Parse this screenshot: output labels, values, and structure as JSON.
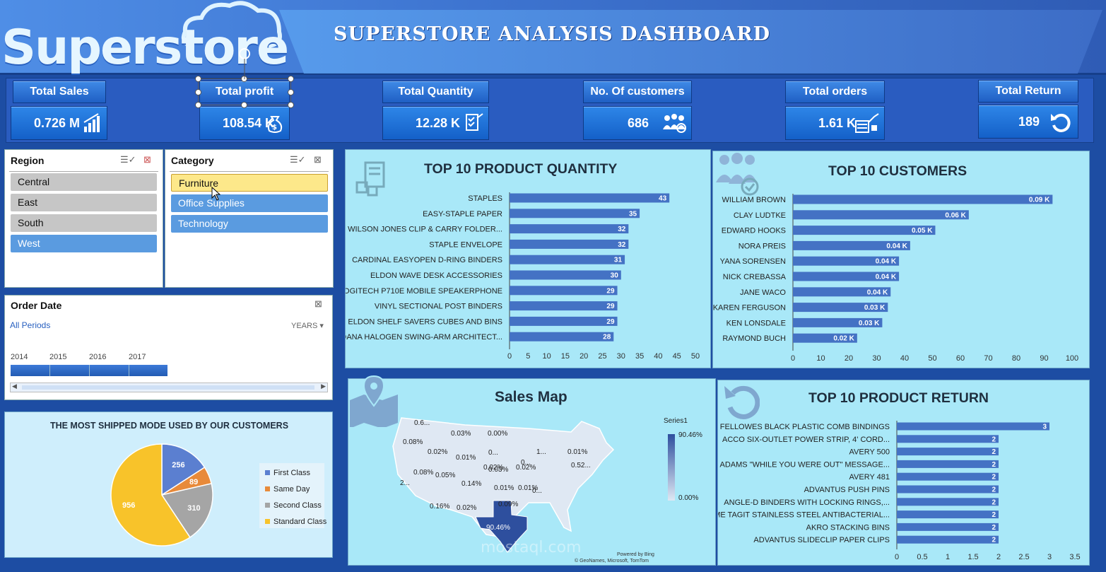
{
  "brand": {
    "logo_text": "Superstore"
  },
  "header": {
    "title": "SUPERSTORE ANALYSIS DASHBOARD"
  },
  "kpis": [
    {
      "label": "Total Sales",
      "value": "0.726 M",
      "icon": "sales-growth-icon"
    },
    {
      "label": "Total profit",
      "value": "108.54 K",
      "icon": "money-bag-icon"
    },
    {
      "label": "Total Quantity",
      "value": "12.28 K",
      "icon": "checklist-icon"
    },
    {
      "label": "No. Of customers",
      "value": "686",
      "icon": "customers-group-icon"
    },
    {
      "label": "Total orders",
      "value": "1.61 K",
      "icon": "orders-growth-icon"
    },
    {
      "label": "Total Return",
      "value": "189",
      "icon": "return-arrow-icon"
    }
  ],
  "region_slicer": {
    "title": "Region",
    "items": [
      "Central",
      "East",
      "South",
      "West"
    ],
    "selected": "West"
  },
  "category_slicer": {
    "title": "Category",
    "items": [
      "Furniture",
      "Office Supplies",
      "Technology"
    ],
    "hovered": "Furniture"
  },
  "order_date": {
    "title": "Order Date",
    "periods_label": "All Periods",
    "level_label": "YEARS",
    "years": [
      "2014",
      "2015",
      "2016",
      "2017"
    ]
  },
  "ship_mode": {
    "title": "THE MOST SHIPPED MODE USED BY OUR CUSTOMERS",
    "chart_data": {
      "type": "pie",
      "categories": [
        "First Class",
        "Same Day",
        "Second Class",
        "Standard Class"
      ],
      "values": [
        256,
        89,
        310,
        956
      ],
      "colors": [
        "#5b7fd0",
        "#e88a3a",
        "#a5a5a5",
        "#f8c32a"
      ]
    }
  },
  "top_quantity": {
    "title": "TOP 10 PRODUCT QUANTITY",
    "chart_data": {
      "type": "bar",
      "orientation": "horizontal",
      "categories": [
        "STAPLES",
        "EASY-STAPLE PAPER",
        "WILSON JONES CLIP & CARRY FOLDER...",
        "STAPLE ENVELOPE",
        "CARDINAL EASYOPEN D-RING BINDERS",
        "ELDON WAVE DESK ACCESSORIES",
        "LOGITECH P710E MOBILE SPEAKERPHONE",
        "VINYL SECTIONAL POST BINDERS",
        "ELDON SHELF SAVERS CUBES AND BINS",
        "DANA HALOGEN SWING-ARM ARCHITECT..."
      ],
      "values": [
        43,
        35,
        32,
        32,
        31,
        30,
        29,
        29,
        29,
        28
      ],
      "labels": [
        "43",
        "35",
        "32",
        "32",
        "31",
        "30",
        "29",
        "29",
        "29",
        "28"
      ],
      "xlim": [
        0,
        50
      ],
      "ticks": [
        "0",
        "5",
        "10",
        "15",
        "20",
        "25",
        "30",
        "35",
        "40",
        "45",
        "50"
      ]
    }
  },
  "top_customers": {
    "title": "TOP 10 CUSTOMERS",
    "chart_data": {
      "type": "bar",
      "orientation": "horizontal",
      "categories": [
        "WILLIAM BROWN",
        "CLAY LUDTKE",
        "EDWARD HOOKS",
        "NORA PREIS",
        "YANA SORENSEN",
        "NICK CREBASSA",
        "JANE WACO",
        "KAREN FERGUSON",
        "KEN LONSDALE",
        "RAYMOND BUCH"
      ],
      "values": [
        93,
        63,
        51,
        42,
        38,
        38,
        35,
        34,
        32,
        23
      ],
      "labels": [
        "0.09 K",
        "0.06 K",
        "0.05 K",
        "0.04 K",
        "0.04 K",
        "0.04 K",
        "0.04 K",
        "0.03 K",
        "0.03 K",
        "0.02 K"
      ],
      "xlim": [
        0,
        100
      ],
      "ticks": [
        "0",
        "10",
        "20",
        "30",
        "40",
        "50",
        "60",
        "70",
        "80",
        "90",
        "100"
      ]
    }
  },
  "sales_map": {
    "title": "Sales Map",
    "legend_title": "Series1",
    "legend_max": "90.46%",
    "legend_min": "0.00%",
    "labels": [
      "0.6...",
      "0.03%",
      "0.00%",
      "0.08%",
      "0.02%",
      "0.01%",
      "0...",
      "1...",
      "0.01%",
      "0.02%",
      "0...",
      "0.52...",
      "0.08%",
      "0.05%",
      "0.03%",
      "0.02%",
      "2...",
      "0.14%",
      "0.01%",
      "0.01%",
      "0...",
      "0.16%",
      "0.02%",
      "0.09%",
      "90.46%"
    ],
    "credit_1": "Powered by Bing",
    "credit_2": "© GeoNames, Microsoft, TomTom"
  },
  "top_returns": {
    "title": "TOP 10 PRODUCT RETURN",
    "chart_data": {
      "type": "bar",
      "orientation": "horizontal",
      "categories": [
        "FELLOWES BLACK PLASTIC COMB BINDINGS",
        "ACCO SIX-OUTLET POWER STRIP, 4' CORD...",
        "AVERY 500",
        "ADAMS \"WHILE YOU WERE OUT\" MESSAGE...",
        "AVERY 481",
        "ADVANTUS PUSH PINS",
        "ANGLE-D BINDERS WITH LOCKING RINGS,...",
        "ACME TAGIT STAINLESS STEEL ANTIBACTERIAL...",
        "AKRO STACKING BINS",
        "ADVANTUS SLIDECLIP PAPER CLIPS"
      ],
      "values": [
        3,
        2,
        2,
        2,
        2,
        2,
        2,
        2,
        2,
        2
      ],
      "labels": [
        "3",
        "2",
        "2",
        "2",
        "2",
        "2",
        "2",
        "2",
        "2",
        "2"
      ],
      "xlim": [
        0,
        3.5
      ],
      "ticks": [
        "0",
        "0.5",
        "1",
        "1.5",
        "2",
        "2.5",
        "3",
        "3.5"
      ]
    }
  },
  "watermark": "mostaql.com",
  "colors": {
    "bar": "#4472c4",
    "panel_bg": "#a9e8f8",
    "kpi": "#1f5fc4"
  }
}
